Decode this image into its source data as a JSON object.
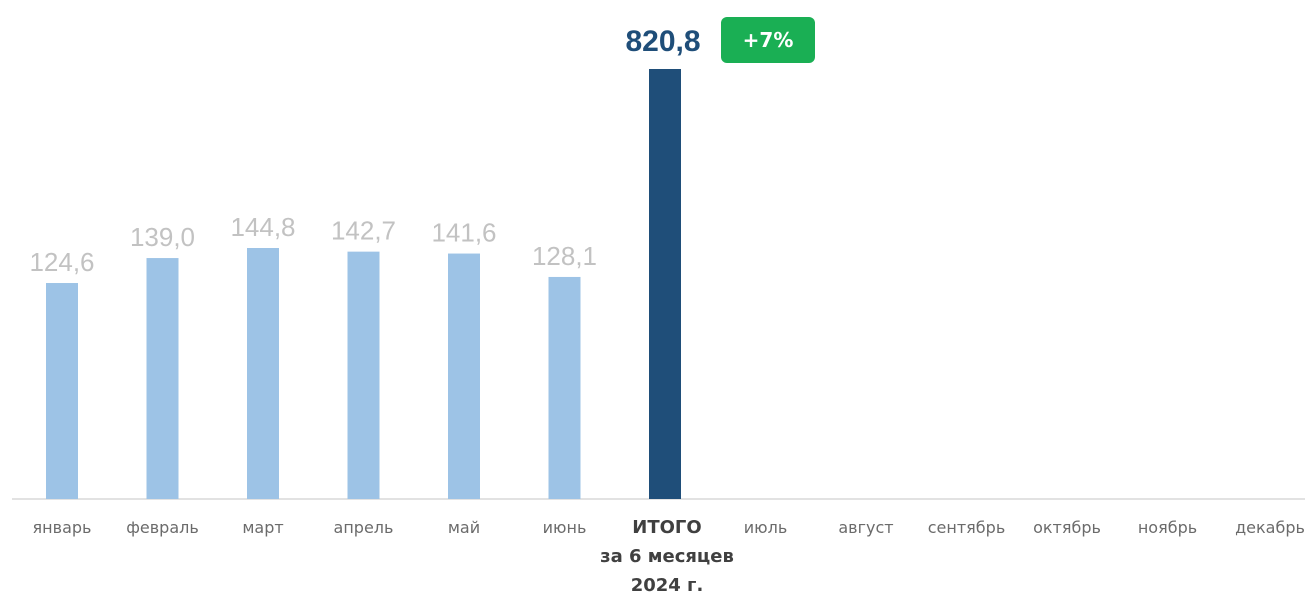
{
  "chart_data": {
    "type": "bar",
    "categories": [
      "январь",
      "февраль",
      "март",
      "апрель",
      "май",
      "июнь",
      "ИТОГО",
      "июль",
      "август",
      "сентябрь",
      "октябрь",
      "ноябрь",
      "декабрь"
    ],
    "values": [
      124.6,
      139.0,
      144.8,
      142.7,
      141.6,
      128.1,
      820.8,
      null,
      null,
      null,
      null,
      null,
      null
    ],
    "value_labels": [
      "124,6",
      "139,0",
      "144,8",
      "142,7",
      "141,6",
      "128,1",
      "820,8",
      "",
      "",
      "",
      "",
      "",
      ""
    ],
    "total_category_lines": [
      "ИТОГО",
      "за 6 месяцев",
      "2024 г."
    ],
    "total_change_badge": "+7%",
    "colors": {
      "month_bar": "#9dc3e6",
      "total_bar": "#1f4e79",
      "month_label": "#c2c2c2",
      "total_label": "#1f4e79",
      "badge": "#1aaf54",
      "baseline": "#d9d9d9"
    },
    "title": "",
    "xlabel": "",
    "ylabel": "",
    "grid": false,
    "legend": "none"
  }
}
